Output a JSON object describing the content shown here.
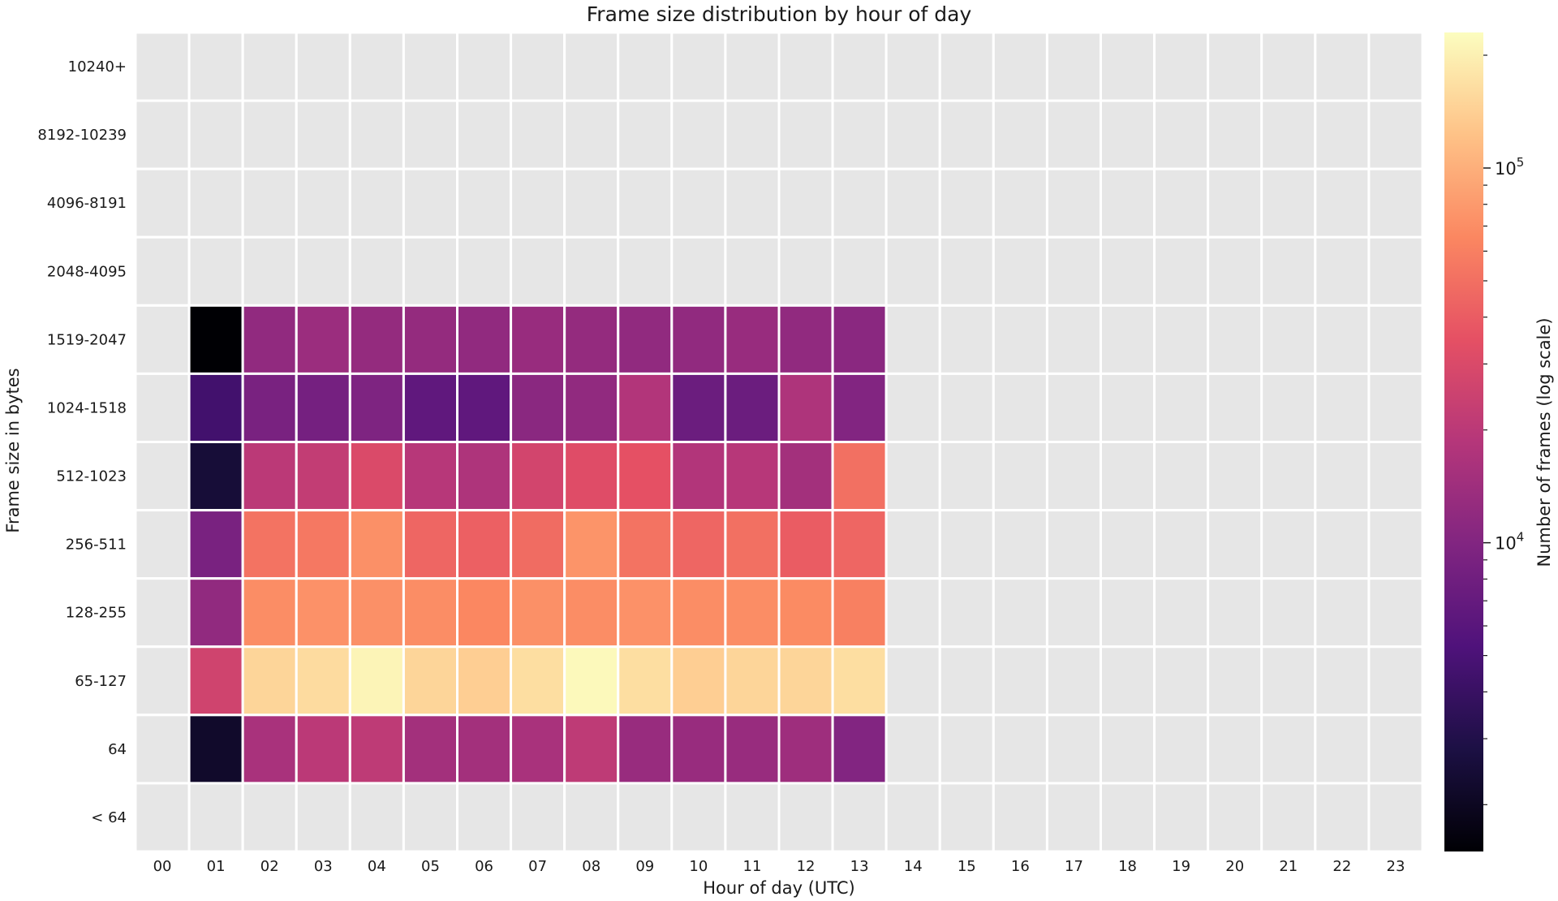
{
  "chart_data": {
    "type": "heatmap",
    "title": "Frame size distribution by hour of day",
    "xlabel": "Hour of day (UTC)",
    "ylabel": "Frame size in bytes",
    "x_categories": [
      "00",
      "01",
      "02",
      "03",
      "04",
      "05",
      "06",
      "07",
      "08",
      "09",
      "10",
      "11",
      "12",
      "13",
      "14",
      "15",
      "16",
      "17",
      "18",
      "19",
      "20",
      "21",
      "22",
      "23"
    ],
    "y_categories": [
      "10240+",
      "8192-10239",
      "4096-8191",
      "2048-4095",
      "1519-2047",
      "1024-1518",
      "512-1023",
      "256-511",
      "128-255",
      "65-127",
      "64",
      "< 64"
    ],
    "value_scale": "log",
    "colormap": "magma",
    "empty_cell_color": "#e6e6e6",
    "grid_line_color": "#ffffff",
    "colorbar": {
      "label": "Number of frames (log scale)",
      "vmin": 1500,
      "vmax": 230000,
      "major_ticks": [
        {
          "value": 10000,
          "base": "10",
          "exp": "4"
        },
        {
          "value": 100000,
          "base": "10",
          "exp": "5"
        }
      ]
    },
    "rows": [
      {
        "label": "10240+",
        "values": [
          null,
          null,
          null,
          null,
          null,
          null,
          null,
          null,
          null,
          null,
          null,
          null,
          null,
          null,
          null,
          null,
          null,
          null,
          null,
          null,
          null,
          null,
          null,
          null
        ]
      },
      {
        "label": "8192-10239",
        "values": [
          null,
          null,
          null,
          null,
          null,
          null,
          null,
          null,
          null,
          null,
          null,
          null,
          null,
          null,
          null,
          null,
          null,
          null,
          null,
          null,
          null,
          null,
          null,
          null
        ]
      },
      {
        "label": "4096-8191",
        "values": [
          null,
          null,
          null,
          null,
          null,
          null,
          null,
          null,
          null,
          null,
          null,
          null,
          null,
          null,
          null,
          null,
          null,
          null,
          null,
          null,
          null,
          null,
          null,
          null
        ]
      },
      {
        "label": "2048-4095",
        "values": [
          null,
          null,
          null,
          null,
          null,
          null,
          null,
          null,
          null,
          null,
          null,
          null,
          null,
          null,
          null,
          null,
          null,
          null,
          null,
          null,
          null,
          null,
          null,
          null
        ]
      },
      {
        "label": "1519-2047",
        "values": [
          null,
          1500,
          12000,
          13500,
          12500,
          12500,
          12000,
          13000,
          12500,
          12000,
          12000,
          13000,
          12000,
          11000,
          null,
          null,
          null,
          null,
          null,
          null,
          null,
          null,
          null,
          null
        ]
      },
      {
        "label": "1024-1518",
        "values": [
          null,
          4500,
          9000,
          8500,
          9500,
          6500,
          6500,
          11000,
          12000,
          18000,
          7500,
          7500,
          17000,
          10000,
          null,
          null,
          null,
          null,
          null,
          null,
          null,
          null,
          null,
          null
        ]
      },
      {
        "label": "512-1023",
        "values": [
          null,
          2500,
          20000,
          22000,
          30000,
          19000,
          17000,
          27000,
          32000,
          35000,
          18000,
          19000,
          15000,
          50000,
          null,
          null,
          null,
          null,
          null,
          null,
          null,
          null,
          null,
          null
        ]
      },
      {
        "label": "256-511",
        "values": [
          null,
          9000,
          52000,
          55000,
          72000,
          45000,
          42000,
          48000,
          75000,
          52000,
          45000,
          50000,
          40000,
          45000,
          null,
          null,
          null,
          null,
          null,
          null,
          null,
          null,
          null,
          null
        ]
      },
      {
        "label": "128-255",
        "values": [
          null,
          12000,
          70000,
          73000,
          72000,
          70000,
          65000,
          72000,
          70000,
          73000,
          70000,
          70000,
          68000,
          60000,
          null,
          null,
          null,
          null,
          null,
          null,
          null,
          null,
          null,
          null
        ]
      },
      {
        "label": "65-127",
        "values": [
          null,
          26000,
          150000,
          160000,
          210000,
          150000,
          140000,
          165000,
          220000,
          165000,
          140000,
          150000,
          150000,
          165000,
          null,
          null,
          null,
          null,
          null,
          null,
          null,
          null,
          null,
          null
        ]
      },
      {
        "label": "64",
        "values": [
          null,
          2200,
          16000,
          20000,
          21000,
          15000,
          15000,
          16000,
          21000,
          13000,
          13000,
          13000,
          14000,
          10000,
          null,
          null,
          null,
          null,
          null,
          null,
          null,
          null,
          null,
          null
        ]
      },
      {
        "label": "< 64",
        "values": [
          null,
          null,
          null,
          null,
          null,
          null,
          null,
          null,
          null,
          null,
          null,
          null,
          null,
          null,
          null,
          null,
          null,
          null,
          null,
          null,
          null,
          null,
          null,
          null
        ]
      }
    ]
  }
}
